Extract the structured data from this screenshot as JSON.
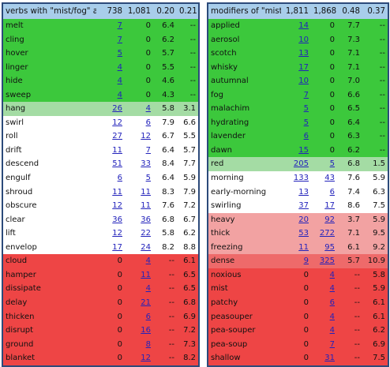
{
  "left": {
    "header": {
      "label": "verbs with \"mist/fog\" as subject",
      "c1": "738",
      "c2": "1,081",
      "c3": "0.20",
      "c4": "0.21"
    },
    "rows": [
      {
        "w": "melt",
        "a": "7",
        "b": "0",
        "c": "6.4",
        "d": "--",
        "t": "g"
      },
      {
        "w": "cling",
        "a": "7",
        "b": "0",
        "c": "6.2",
        "d": "--",
        "t": "g"
      },
      {
        "w": "hover",
        "a": "5",
        "b": "0",
        "c": "5.7",
        "d": "--",
        "t": "g"
      },
      {
        "w": "linger",
        "a": "4",
        "b": "0",
        "c": "5.5",
        "d": "--",
        "t": "g"
      },
      {
        "w": "hide",
        "a": "4",
        "b": "0",
        "c": "4.6",
        "d": "--",
        "t": "g"
      },
      {
        "w": "sweep",
        "a": "4",
        "b": "0",
        "c": "4.3",
        "d": "--",
        "t": "g"
      },
      {
        "w": "hang",
        "a": "26",
        "b": "4",
        "c": "5.8",
        "d": "3.1",
        "t": "lg"
      },
      {
        "w": "swirl",
        "a": "12",
        "b": "6",
        "c": "7.9",
        "d": "6.6",
        "t": "w"
      },
      {
        "w": "roll",
        "a": "27",
        "b": "12",
        "c": "6.7",
        "d": "5.5",
        "t": "w"
      },
      {
        "w": "drift",
        "a": "11",
        "b": "7",
        "c": "6.4",
        "d": "5.7",
        "t": "w"
      },
      {
        "w": "descend",
        "a": "51",
        "b": "33",
        "c": "8.4",
        "d": "7.7",
        "t": "w"
      },
      {
        "w": "engulf",
        "a": "6",
        "b": "5",
        "c": "6.4",
        "d": "5.9",
        "t": "w"
      },
      {
        "w": "shroud",
        "a": "11",
        "b": "11",
        "c": "8.3",
        "d": "7.9",
        "t": "w"
      },
      {
        "w": "obscure",
        "a": "12",
        "b": "11",
        "c": "7.6",
        "d": "7.2",
        "t": "w"
      },
      {
        "w": "clear",
        "a": "36",
        "b": "36",
        "c": "6.8",
        "d": "6.7",
        "t": "w"
      },
      {
        "w": "lift",
        "a": "12",
        "b": "22",
        "c": "5.8",
        "d": "6.2",
        "t": "w"
      },
      {
        "w": "envelop",
        "a": "17",
        "b": "24",
        "c": "8.2",
        "d": "8.8",
        "t": "w"
      },
      {
        "w": "cloud",
        "a": "0",
        "b": "4",
        "c": "--",
        "d": "6.1",
        "t": "r"
      },
      {
        "w": "hamper",
        "a": "0",
        "b": "11",
        "c": "--",
        "d": "6.5",
        "t": "r"
      },
      {
        "w": "dissipate",
        "a": "0",
        "b": "4",
        "c": "--",
        "d": "6.5",
        "t": "r"
      },
      {
        "w": "delay",
        "a": "0",
        "b": "21",
        "c": "--",
        "d": "6.8",
        "t": "r"
      },
      {
        "w": "thicken",
        "a": "0",
        "b": "6",
        "c": "--",
        "d": "6.9",
        "t": "r"
      },
      {
        "w": "disrupt",
        "a": "0",
        "b": "16",
        "c": "--",
        "d": "7.2",
        "t": "r"
      },
      {
        "w": "ground",
        "a": "0",
        "b": "8",
        "c": "--",
        "d": "7.3",
        "t": "r"
      },
      {
        "w": "blanket",
        "a": "0",
        "b": "12",
        "c": "--",
        "d": "8.2",
        "t": "r"
      }
    ]
  },
  "right": {
    "header": {
      "label": "modifiers of \"mist/fog\"",
      "c1": "1,811",
      "c2": "1,868",
      "c3": "0.48",
      "c4": "0.37"
    },
    "rows": [
      {
        "w": "applied",
        "a": "14",
        "b": "0",
        "c": "7.7",
        "d": "--",
        "t": "g"
      },
      {
        "w": "aerosol",
        "a": "10",
        "b": "0",
        "c": "7.3",
        "d": "--",
        "t": "g"
      },
      {
        "w": "scotch",
        "a": "13",
        "b": "0",
        "c": "7.1",
        "d": "--",
        "t": "g"
      },
      {
        "w": "whisky",
        "a": "17",
        "b": "0",
        "c": "7.1",
        "d": "--",
        "t": "g"
      },
      {
        "w": "autumnal",
        "a": "10",
        "b": "0",
        "c": "7.0",
        "d": "--",
        "t": "g"
      },
      {
        "w": "fog",
        "a": "7",
        "b": "0",
        "c": "6.6",
        "d": "--",
        "t": "g"
      },
      {
        "w": "malachim",
        "a": "5",
        "b": "0",
        "c": "6.5",
        "d": "--",
        "t": "g"
      },
      {
        "w": "hydrating",
        "a": "5",
        "b": "0",
        "c": "6.4",
        "d": "--",
        "t": "g"
      },
      {
        "w": "lavender",
        "a": "6",
        "b": "0",
        "c": "6.3",
        "d": "--",
        "t": "g"
      },
      {
        "w": "dawn",
        "a": "15",
        "b": "0",
        "c": "6.2",
        "d": "--",
        "t": "g"
      },
      {
        "w": "red",
        "a": "205",
        "b": "5",
        "c": "6.8",
        "d": "1.5",
        "t": "lg"
      },
      {
        "w": "morning",
        "a": "133",
        "b": "43",
        "c": "7.6",
        "d": "5.9",
        "t": "w"
      },
      {
        "w": "early-morning",
        "a": "13",
        "b": "6",
        "c": "7.4",
        "d": "6.3",
        "t": "w"
      },
      {
        "w": "swirling",
        "a": "37",
        "b": "17",
        "c": "8.6",
        "d": "7.5",
        "t": "w"
      },
      {
        "w": "heavy",
        "a": "20",
        "b": "92",
        "c": "3.7",
        "d": "5.9",
        "t": "p"
      },
      {
        "w": "thick",
        "a": "53",
        "b": "272",
        "c": "7.1",
        "d": "9.5",
        "t": "p"
      },
      {
        "w": "freezing",
        "a": "11",
        "b": "95",
        "c": "6.1",
        "d": "9.2",
        "t": "p"
      },
      {
        "w": "dense",
        "a": "9",
        "b": "325",
        "c": "5.7",
        "d": "10.9",
        "t": "lr"
      },
      {
        "w": "noxious",
        "a": "0",
        "b": "4",
        "c": "--",
        "d": "5.8",
        "t": "r"
      },
      {
        "w": "mist",
        "a": "0",
        "b": "4",
        "c": "--",
        "d": "5.9",
        "t": "r"
      },
      {
        "w": "patchy",
        "a": "0",
        "b": "6",
        "c": "--",
        "d": "6.1",
        "t": "r"
      },
      {
        "w": "peasouper",
        "a": "0",
        "b": "4",
        "c": "--",
        "d": "6.1",
        "t": "r"
      },
      {
        "w": "pea-souper",
        "a": "0",
        "b": "4",
        "c": "--",
        "d": "6.2",
        "t": "r"
      },
      {
        "w": "pea-soup",
        "a": "0",
        "b": "7",
        "c": "--",
        "d": "6.9",
        "t": "r"
      },
      {
        "w": "shallow",
        "a": "0",
        "b": "31",
        "c": "--",
        "d": "7.5",
        "t": "r"
      }
    ]
  },
  "colors": {
    "green": "#3cc83c",
    "light_green": "#a4dca4",
    "pink": "#f2a2a2",
    "light_red": "#ee6a6a",
    "red": "#ee4545",
    "header": "#a8cdea",
    "border": "#2c4a7a",
    "link": "#2222bb"
  }
}
